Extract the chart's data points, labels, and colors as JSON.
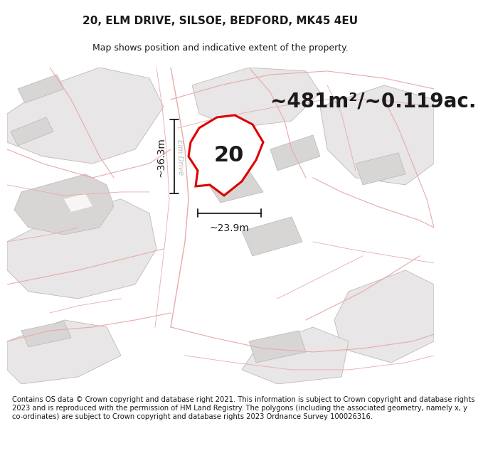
{
  "title": "20, ELM DRIVE, SILSOE, BEDFORD, MK45 4EU",
  "subtitle": "Map shows position and indicative extent of the property.",
  "footer": "Contains OS data © Crown copyright and database right 2021. This information is subject to Crown copyright and database rights 2023 and is reproduced with the permission of HM Land Registry. The polygons (including the associated geometry, namely x, y co-ordinates) are subject to Crown copyright and database rights 2023 Ordnance Survey 100026316.",
  "area_text": "~481m²/~0.119ac.",
  "dim_width": "~23.9m",
  "dim_height": "~36.3m",
  "number_label": "20",
  "map_bg": "#f7f5f5",
  "parcel_fill": "#e8e6e6",
  "parcel_edge": "#c8c6c6",
  "building_fill": "#d8d5d5",
  "building_edge": "#b8b5b5",
  "plot_fill": "#ffffff",
  "plot_edge": "#dd0000",
  "road_line_color": "#e8aaaa",
  "parcel_line_color": "#c0b0b0",
  "dim_color": "#1a1a1a",
  "text_color": "#1a1a1a",
  "road_label_color": "#bbbbbb",
  "title_fontsize": 11,
  "subtitle_fontsize": 9,
  "area_fontsize": 20,
  "number_fontsize": 22,
  "dim_fontsize": 10,
  "footer_fontsize": 7.2
}
